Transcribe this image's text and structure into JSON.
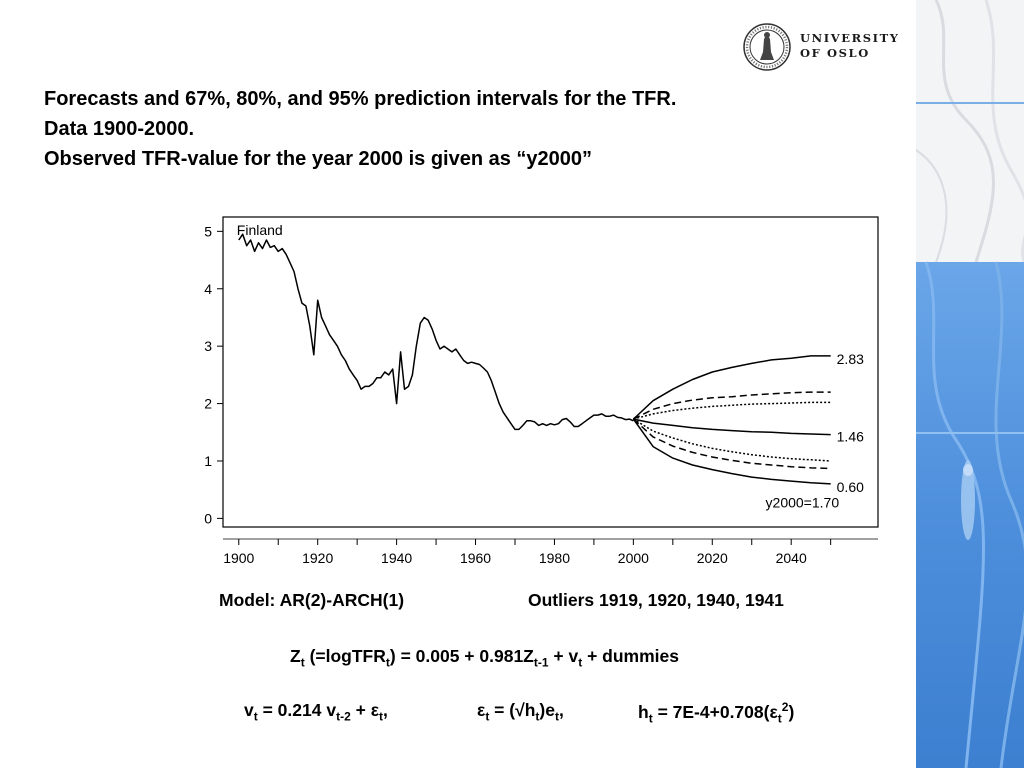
{
  "colors": {
    "accent_blue": "#5b9be0",
    "band_light": "#f2f4f7"
  },
  "logo": {
    "line1": "UNIVERSITY",
    "line2": "OF OSLO",
    "seal_icon": "university-seal-icon"
  },
  "heading": {
    "line1": "Forecasts and 67%, 80%, and 95% prediction intervals for the TFR.",
    "line2": "Data 1900-2000.",
    "line3": "Observed TFR-value for the year 2000 is given as “y2000”"
  },
  "model": {
    "spec": "Model: AR(2)-ARCH(1)",
    "outliers": "Outliers 1919, 1920, 1940, 1941"
  },
  "equation1": {
    "p1": "Z",
    "p1_sub": "t",
    "p2": " (=logTFR",
    "p2_sub": "t",
    "p3": ") = 0.005 + 0.981Z",
    "p3_sub": "t-1",
    "p4": " + v",
    "p4_sub": "t",
    "p5": " + dummies"
  },
  "equation2": {
    "a1": "v",
    "a1_sub": "t",
    "a2": " = 0.214 v",
    "a2_sub": "t-2",
    "a3": " + ε",
    "a3_sub": "t",
    "a4": ",",
    "b1": "ε",
    "b1_sub": "t",
    "b2": " = (√h",
    "b2_sub": "t",
    "b3": ")e",
    "b3_sub": "t",
    "b4": ",",
    "c1": "h",
    "c1_sub": "t",
    "c2": " = 7E-4+0.708(ε",
    "c2_sub": "t",
    "c2_sup": "2",
    "c3": ")"
  },
  "chart_data": {
    "type": "line",
    "panel_label": "Finland",
    "xlim": [
      1896,
      2062
    ],
    "ylim": [
      -0.15,
      5.25
    ],
    "x_ticks": [
      1900,
      1920,
      1940,
      1960,
      1980,
      2000,
      2020,
      2040
    ],
    "x_minor_ticks": [
      1910,
      1930,
      1950,
      1970,
      1990,
      2010,
      2030,
      2050
    ],
    "y_ticks": [
      0,
      1,
      2,
      3,
      4,
      5
    ],
    "annotations": [
      "2.83",
      "1.46",
      "0.60",
      "y2000=1.70"
    ],
    "series": [
      {
        "style": "solid",
        "x": [
          1900,
          1901,
          1902,
          1903,
          1904,
          1905,
          1906,
          1907,
          1908,
          1909,
          1910,
          1911,
          1912,
          1913,
          1914,
          1915,
          1916,
          1917,
          1918,
          1919,
          1920,
          1921,
          1922,
          1923,
          1924,
          1925,
          1926,
          1927,
          1928,
          1929,
          1930,
          1931,
          1932,
          1933,
          1934,
          1935,
          1936,
          1937,
          1938,
          1939,
          1940,
          1941,
          1942,
          1943,
          1944,
          1945,
          1946,
          1947,
          1948,
          1949,
          1950,
          1951,
          1952,
          1953,
          1954,
          1955,
          1956,
          1957,
          1958,
          1959,
          1960,
          1961,
          1962,
          1963,
          1964,
          1965,
          1966,
          1967,
          1968,
          1969,
          1970,
          1971,
          1972,
          1973,
          1974,
          1975,
          1976,
          1977,
          1978,
          1979,
          1980,
          1981,
          1982,
          1983,
          1984,
          1985,
          1986,
          1987,
          1988,
          1989,
          1990,
          1991,
          1992,
          1993,
          1994,
          1995,
          1996,
          1997,
          1998,
          1999,
          2000
        ],
        "y": [
          4.85,
          4.95,
          4.75,
          4.85,
          4.65,
          4.8,
          4.7,
          4.85,
          4.72,
          4.75,
          4.65,
          4.7,
          4.6,
          4.45,
          4.3,
          4.0,
          3.75,
          3.7,
          3.35,
          2.85,
          3.8,
          3.5,
          3.35,
          3.2,
          3.1,
          3.0,
          2.85,
          2.75,
          2.6,
          2.5,
          2.4,
          2.25,
          2.3,
          2.3,
          2.35,
          2.45,
          2.45,
          2.55,
          2.5,
          2.6,
          2.0,
          2.9,
          2.25,
          2.3,
          2.5,
          3.0,
          3.4,
          3.5,
          3.45,
          3.3,
          3.1,
          2.95,
          3.0,
          2.95,
          2.9,
          2.95,
          2.85,
          2.75,
          2.7,
          2.72,
          2.7,
          2.68,
          2.62,
          2.55,
          2.4,
          2.2,
          2.0,
          1.85,
          1.75,
          1.65,
          1.55,
          1.55,
          1.62,
          1.7,
          1.7,
          1.68,
          1.62,
          1.65,
          1.62,
          1.65,
          1.63,
          1.65,
          1.72,
          1.74,
          1.68,
          1.6,
          1.6,
          1.65,
          1.7,
          1.75,
          1.8,
          1.8,
          1.82,
          1.78,
          1.78,
          1.8,
          1.76,
          1.75,
          1.72,
          1.73,
          1.7
        ]
      },
      {
        "style": "solid",
        "x": [
          2000,
          2005,
          2010,
          2015,
          2020,
          2025,
          2030,
          2035,
          2040,
          2045,
          2050
        ],
        "y": [
          1.73,
          2.05,
          2.25,
          2.42,
          2.55,
          2.63,
          2.7,
          2.76,
          2.79,
          2.83,
          2.83
        ]
      },
      {
        "style": "dashed",
        "x": [
          2000,
          2005,
          2010,
          2015,
          2020,
          2025,
          2030,
          2035,
          2040,
          2045,
          2050
        ],
        "y": [
          1.73,
          1.9,
          2.0,
          2.06,
          2.1,
          2.12,
          2.15,
          2.17,
          2.19,
          2.2,
          2.2
        ]
      },
      {
        "style": "dotted",
        "x": [
          2000,
          2005,
          2010,
          2015,
          2020,
          2025,
          2030,
          2035,
          2040,
          2045,
          2050
        ],
        "y": [
          1.73,
          1.82,
          1.88,
          1.92,
          1.95,
          1.97,
          1.99,
          2.0,
          2.01,
          2.02,
          2.02
        ]
      },
      {
        "style": "solid",
        "x": [
          2000,
          2005,
          2010,
          2015,
          2020,
          2025,
          2030,
          2035,
          2040,
          2045,
          2050
        ],
        "y": [
          1.73,
          1.66,
          1.62,
          1.58,
          1.55,
          1.53,
          1.51,
          1.5,
          1.48,
          1.47,
          1.46
        ]
      },
      {
        "style": "dotted",
        "x": [
          2000,
          2005,
          2010,
          2015,
          2020,
          2025,
          2030,
          2035,
          2040,
          2045,
          2050
        ],
        "y": [
          1.73,
          1.52,
          1.4,
          1.3,
          1.22,
          1.16,
          1.11,
          1.07,
          1.04,
          1.02,
          1.0
        ]
      },
      {
        "style": "dashed",
        "x": [
          2000,
          2005,
          2010,
          2015,
          2020,
          2025,
          2030,
          2035,
          2040,
          2045,
          2050
        ],
        "y": [
          1.73,
          1.42,
          1.26,
          1.15,
          1.07,
          1.01,
          0.96,
          0.93,
          0.9,
          0.88,
          0.87
        ]
      },
      {
        "style": "solid",
        "x": [
          2000,
          2005,
          2010,
          2015,
          2020,
          2025,
          2030,
          2035,
          2040,
          2045,
          2050
        ],
        "y": [
          1.73,
          1.25,
          1.05,
          0.93,
          0.85,
          0.78,
          0.72,
          0.68,
          0.65,
          0.62,
          0.6
        ]
      }
    ]
  }
}
